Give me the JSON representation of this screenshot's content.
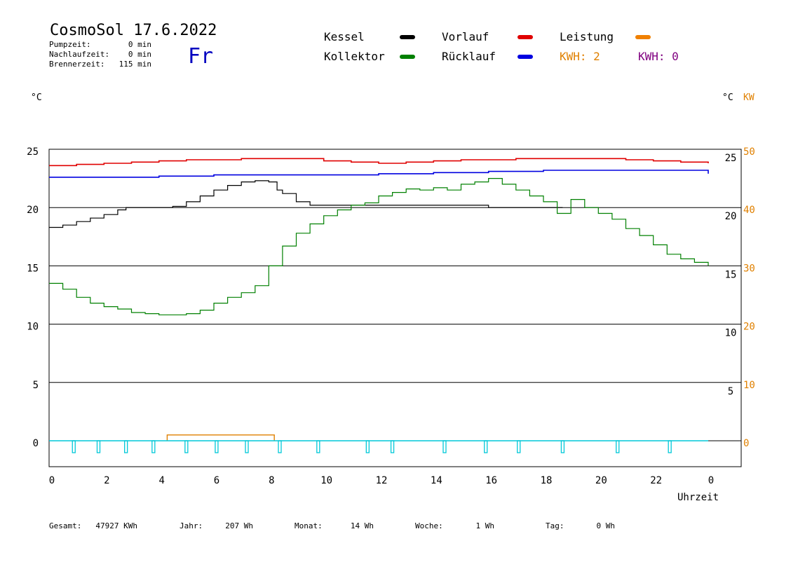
{
  "header": {
    "title": "CosmoSol 17.6.2022",
    "weekday": "Fr",
    "stats": [
      {
        "label": "Pumpzeit:",
        "value": "0 min"
      },
      {
        "label": "Nachlaufzeit:",
        "value": "0 min"
      },
      {
        "label": "Brennerzeit:",
        "value": "115 min"
      }
    ]
  },
  "legend": [
    {
      "label": "Kessel",
      "color": "#000000"
    },
    {
      "label": "Vorlauf",
      "color": "#e00000"
    },
    {
      "label": "Leistung",
      "color": "#f08000"
    },
    {
      "label": "Kollektor",
      "color": "#008000"
    },
    {
      "label": "Rücklauf",
      "color": "#0000e0"
    }
  ],
  "kwh": [
    {
      "text": "KWH: 2",
      "color": "#e08000"
    },
    {
      "text": "KWH: 0",
      "color": "#800080"
    }
  ],
  "axes": {
    "left_unit": "°C",
    "right_unit_c": "°C",
    "right_unit_kw": "KW",
    "xlabel": "Uhrzeit",
    "left_ticks": [
      "0",
      "5",
      "10",
      "15",
      "20",
      "25"
    ],
    "right_c_ticks": [
      "5",
      "10",
      "15",
      "20",
      "25"
    ],
    "right_kw_ticks": [
      "0",
      "10",
      "20",
      "30",
      "40",
      "50"
    ],
    "x_ticks": [
      "0",
      "2",
      "4",
      "6",
      "8",
      "10",
      "12",
      "14",
      "16",
      "18",
      "20",
      "22",
      "0"
    ]
  },
  "footer": [
    {
      "label": "Gesamt:",
      "value": "47927 KWh"
    },
    {
      "label": "Jahr:",
      "value": "207 Wh"
    },
    {
      "label": "Monat:",
      "value": "14 Wh"
    },
    {
      "label": "Woche:",
      "value": "1 Wh"
    },
    {
      "label": "Tag:",
      "value": "0 Wh"
    }
  ],
  "chart_data": {
    "type": "line",
    "xlim": [
      0,
      24
    ],
    "ylim": [
      -2,
      25.5
    ],
    "y2lim_kw": [
      0,
      50
    ],
    "grid": true,
    "series": [
      {
        "name": "Vorlauf",
        "color": "#e00000",
        "x": [
          0,
          1,
          2,
          3,
          4,
          5,
          6,
          7,
          8,
          9,
          10,
          11,
          12,
          13,
          14,
          15,
          16,
          17,
          18,
          19,
          20,
          21,
          22,
          23,
          24
        ],
        "y": [
          23.6,
          23.7,
          23.8,
          23.9,
          24.0,
          24.1,
          24.1,
          24.2,
          24.2,
          24.2,
          24.0,
          23.9,
          23.8,
          23.9,
          24.0,
          24.1,
          24.1,
          24.2,
          24.2,
          24.2,
          24.2,
          24.1,
          24.0,
          23.9,
          23.8
        ]
      },
      {
        "name": "Rücklauf",
        "color": "#0000e0",
        "x": [
          0,
          2,
          4,
          6,
          8,
          10,
          12,
          14,
          16,
          18,
          20,
          22,
          24
        ],
        "y": [
          22.6,
          22.6,
          22.7,
          22.8,
          22.8,
          22.8,
          22.9,
          23.0,
          23.1,
          23.2,
          23.2,
          23.2,
          22.9
        ]
      },
      {
        "name": "Kessel",
        "color": "#000000",
        "x": [
          0,
          0.5,
          1,
          1.5,
          2,
          2.5,
          2.8,
          3,
          4,
          4.5,
          5,
          5.5,
          6,
          6.5,
          7,
          7.5,
          8,
          8.3,
          8.5,
          9,
          9.5,
          10,
          12,
          14,
          16,
          18,
          18.7
        ],
        "y": [
          18.3,
          18.5,
          18.8,
          19.1,
          19.4,
          19.8,
          20.0,
          20.0,
          20.0,
          20.1,
          20.5,
          21.0,
          21.5,
          21.9,
          22.2,
          22.3,
          22.2,
          21.5,
          21.2,
          20.5,
          20.2,
          20.2,
          20.2,
          20.2,
          20.0,
          20.0,
          20.0
        ]
      },
      {
        "name": "Kollektor",
        "color": "#008000",
        "x": [
          0,
          0.5,
          1,
          1.5,
          2,
          2.5,
          3,
          3.5,
          4,
          4.5,
          5,
          5.5,
          6,
          6.5,
          7,
          7.5,
          8,
          8.5,
          9,
          9.5,
          10,
          10.5,
          11,
          11.5,
          12,
          12.5,
          13,
          13.5,
          14,
          14.5,
          15,
          15.5,
          16,
          16.5,
          17,
          17.5,
          18,
          18.5,
          19,
          19.5,
          20,
          20.5,
          21,
          21.5,
          22,
          22.5,
          23,
          23.5,
          24
        ],
        "y": [
          13.5,
          13.0,
          12.3,
          11.8,
          11.5,
          11.3,
          11.0,
          10.9,
          10.8,
          10.8,
          10.9,
          11.2,
          11.8,
          12.3,
          12.7,
          13.3,
          15.0,
          16.7,
          17.8,
          18.6,
          19.3,
          19.8,
          20.2,
          20.4,
          21.0,
          21.3,
          21.6,
          21.5,
          21.7,
          21.5,
          22.0,
          22.2,
          22.5,
          22.0,
          21.5,
          21.0,
          20.5,
          19.5,
          20.7,
          20.0,
          19.5,
          19.0,
          18.2,
          17.6,
          16.8,
          16.0,
          15.6,
          15.3,
          15.0
        ]
      }
    ],
    "leistung_kw": {
      "name": "Leistung",
      "color": "#e08000",
      "x_start": 4.3,
      "x_end": 8.2,
      "value": 1.0
    },
    "pump_markers_hours": [
      0.9,
      1.8,
      2.8,
      3.8,
      5.0,
      6.1,
      7.2,
      8.4,
      9.8,
      11.6,
      12.5,
      14.4,
      15.9,
      17.1,
      18.7,
      20.7,
      22.6
    ]
  }
}
